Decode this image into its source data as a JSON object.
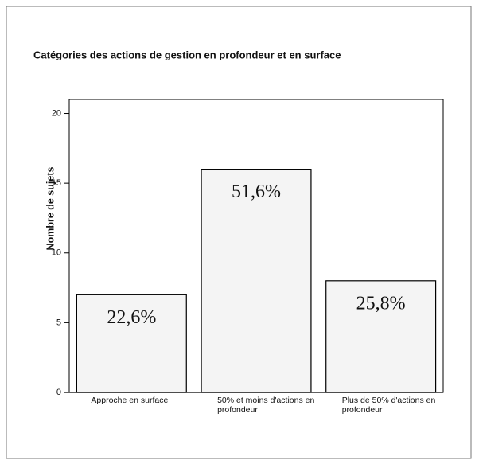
{
  "chart_data": {
    "type": "bar",
    "title": "Catégories des actions de gestion en profondeur et en surface",
    "ylabel": "Nombre de sujets",
    "categories": [
      "Approche en surface",
      "50% et moins d'actions en profondeur",
      "Plus de 50% d'actions en profondeur"
    ],
    "values": [
      7,
      16,
      8
    ],
    "annotations": [
      "22,6%",
      "51,6%",
      "25,8%"
    ],
    "color": "#f4f4f4",
    "ylim": [
      0,
      21
    ],
    "yticks": [
      0,
      5,
      10,
      15,
      20
    ],
    "grid": false
  }
}
